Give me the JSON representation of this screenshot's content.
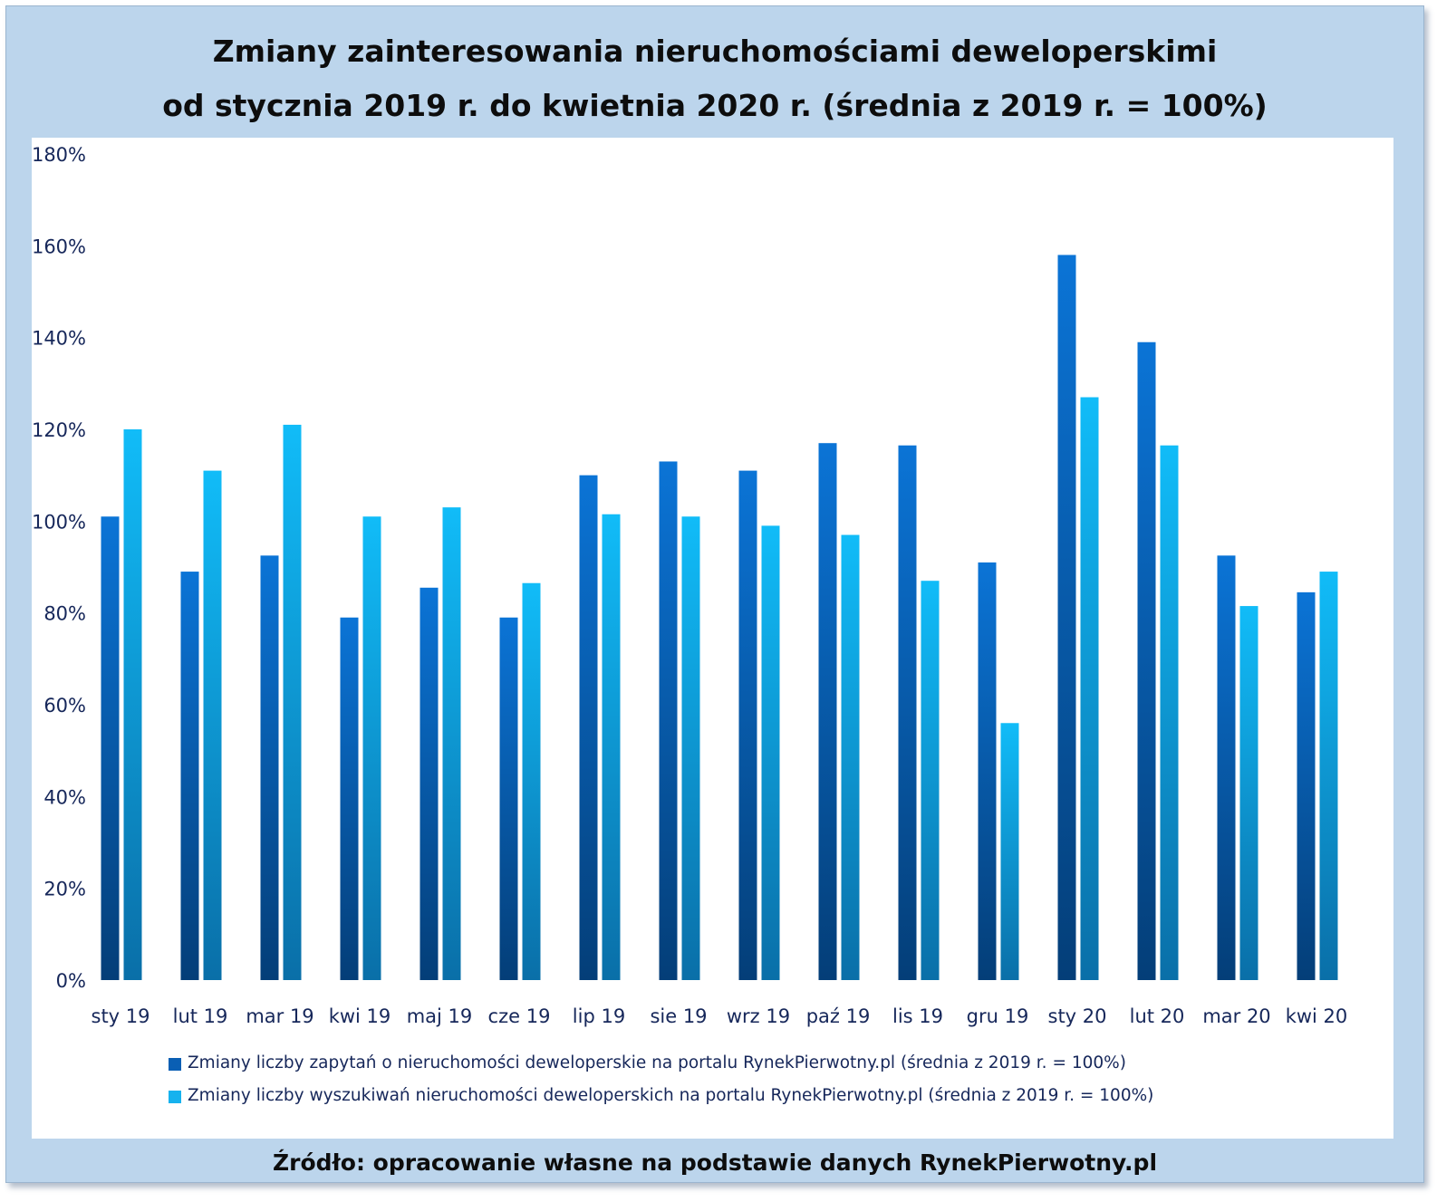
{
  "chart_data": {
    "type": "bar",
    "title": "Zmiany zainteresowania nieruchomościami deweloperskimi",
    "subtitle": "od stycznia 2019 r. do kwietnia 2020 r. (średnia z 2019 r. = 100%)",
    "source": "Źródło: opracowanie własne na podstawie danych RynekPierwotny.pl",
    "xlabel": "",
    "ylabel": "",
    "ylim": [
      0,
      180
    ],
    "yticks": [
      "0%",
      "20%",
      "40%",
      "60%",
      "80%",
      "100%",
      "120%",
      "140%",
      "160%",
      "180%"
    ],
    "grid": false,
    "legend_position": "bottom",
    "categories": [
      "sty 19",
      "lut 19",
      "mar 19",
      "kwi 19",
      "maj 19",
      "cze 19",
      "lip 19",
      "sie 19",
      "wrz 19",
      "paź 19",
      "lis 19",
      "gru 19",
      "sty 20",
      "lut 20",
      "mar 20",
      "kwi 20"
    ],
    "series": [
      {
        "name": "Zmiany liczby zapytań o nieruchomości deweloperskie na portalu RynekPierwotny.pl (średnia z 2019 r. = 100%)",
        "color": "#0a6fcc",
        "values": [
          101,
          89,
          92.5,
          79,
          85.5,
          79,
          110,
          113,
          111,
          117,
          116.5,
          91,
          158,
          139,
          92.5,
          84.5
        ]
      },
      {
        "name": "Zmiany liczby wyszukiwań nieruchomości deweloperskich na portalu RynekPierwotny.pl (średnia z 2019 r. = 100%)",
        "color": "#19b6f2",
        "values": [
          120,
          111,
          121,
          101,
          103,
          86.5,
          101.5,
          101,
          99,
          97,
          87,
          56,
          127,
          116.5,
          81.5,
          89
        ]
      }
    ]
  }
}
